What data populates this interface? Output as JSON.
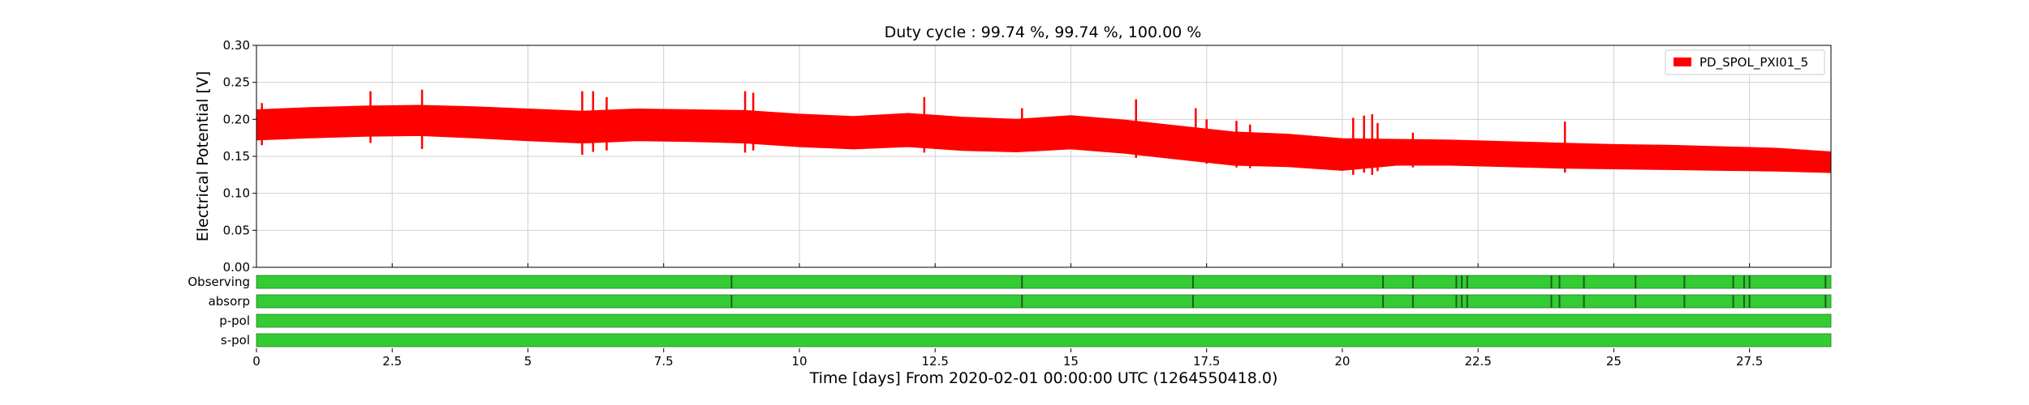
{
  "chart_data": {
    "type": "line",
    "title": "Duty cycle : 99.74 %, 99.74 %, 100.00 %",
    "xlabel": "Time [days] From 2020-02-01 00:00:00 UTC (1264550418.0)",
    "ylabel": "Electrical Potential [V]",
    "xlim": [
      0,
      29
    ],
    "ylim": [
      0,
      0.3
    ],
    "x_ticks": [
      "0",
      "2.5",
      "5",
      "7.5",
      "10",
      "12.5",
      "15",
      "17.5",
      "20",
      "22.5",
      "25",
      "27.5"
    ],
    "x_tick_values": [
      0,
      2.5,
      5,
      7.5,
      10,
      12.5,
      15,
      17.5,
      20,
      22.5,
      25,
      27.5
    ],
    "y_ticks": [
      "0.00",
      "0.05",
      "0.10",
      "0.15",
      "0.20",
      "0.25",
      "0.30"
    ],
    "y_tick_values": [
      0,
      0.05,
      0.1,
      0.15,
      0.2,
      0.25,
      0.3
    ],
    "grid": true,
    "legend_position": "top-right",
    "series": [
      {
        "name": "PD_SPOL_PXI01_5",
        "color": "#ff0000",
        "style": "band",
        "x": [
          0,
          1,
          2,
          3,
          4,
          5,
          6,
          7,
          8,
          9,
          10,
          11,
          12,
          13,
          14,
          15,
          16,
          17,
          18,
          19,
          20,
          21,
          22,
          23,
          24,
          25,
          26,
          27,
          28,
          29
        ],
        "upper": [
          0.213,
          0.216,
          0.218,
          0.219,
          0.217,
          0.214,
          0.211,
          0.214,
          0.213,
          0.212,
          0.207,
          0.204,
          0.208,
          0.203,
          0.2,
          0.205,
          0.199,
          0.191,
          0.183,
          0.18,
          0.174,
          0.173,
          0.172,
          0.17,
          0.168,
          0.166,
          0.165,
          0.163,
          0.161,
          0.156
        ],
        "lower": [
          0.172,
          0.175,
          0.177,
          0.178,
          0.175,
          0.171,
          0.168,
          0.171,
          0.17,
          0.168,
          0.163,
          0.16,
          0.163,
          0.158,
          0.156,
          0.16,
          0.154,
          0.146,
          0.138,
          0.136,
          0.131,
          0.138,
          0.138,
          0.136,
          0.134,
          0.133,
          0.132,
          0.131,
          0.13,
          0.128
        ],
        "spikes": [
          {
            "x": 0.1,
            "low": 0.165,
            "high": 0.222
          },
          {
            "x": 2.1,
            "low": 0.168,
            "high": 0.238
          },
          {
            "x": 3.05,
            "low": 0.16,
            "high": 0.24
          },
          {
            "x": 6.0,
            "low": 0.152,
            "high": 0.238
          },
          {
            "x": 6.2,
            "low": 0.156,
            "high": 0.238
          },
          {
            "x": 6.45,
            "low": 0.158,
            "high": 0.23
          },
          {
            "x": 9.0,
            "low": 0.155,
            "high": 0.238
          },
          {
            "x": 9.15,
            "low": 0.158,
            "high": 0.236
          },
          {
            "x": 12.3,
            "low": 0.155,
            "high": 0.23
          },
          {
            "x": 14.1,
            "low": 0.156,
            "high": 0.215
          },
          {
            "x": 16.2,
            "low": 0.148,
            "high": 0.227
          },
          {
            "x": 17.3,
            "low": 0.145,
            "high": 0.215
          },
          {
            "x": 17.5,
            "low": 0.14,
            "high": 0.2
          },
          {
            "x": 18.05,
            "low": 0.135,
            "high": 0.198
          },
          {
            "x": 18.3,
            "low": 0.134,
            "high": 0.193
          },
          {
            "x": 20.2,
            "low": 0.125,
            "high": 0.202
          },
          {
            "x": 20.4,
            "low": 0.128,
            "high": 0.205
          },
          {
            "x": 20.55,
            "low": 0.125,
            "high": 0.207
          },
          {
            "x": 20.65,
            "low": 0.13,
            "high": 0.195
          },
          {
            "x": 21.3,
            "low": 0.135,
            "high": 0.182
          },
          {
            "x": 24.1,
            "low": 0.128,
            "high": 0.197
          }
        ]
      }
    ],
    "segments": [
      {
        "name": "Observing",
        "color": "#33cc33",
        "gaps": [
          8.75,
          14.1,
          17.25,
          20.75,
          21.3,
          22.1,
          22.2,
          22.3,
          23.85,
          24.0,
          24.45,
          25.4,
          26.3,
          27.2,
          27.4,
          27.5,
          28.9
        ]
      },
      {
        "name": "absorp",
        "color": "#33cc33",
        "gaps": [
          8.75,
          14.1,
          17.25,
          20.75,
          21.3,
          22.1,
          22.2,
          22.3,
          23.85,
          24.0,
          24.45,
          25.4,
          26.3,
          27.2,
          27.4,
          27.5,
          28.9
        ]
      },
      {
        "name": "p-pol",
        "color": "#33cc33",
        "gaps": []
      },
      {
        "name": "s-pol",
        "color": "#33cc33",
        "gaps": []
      }
    ]
  }
}
